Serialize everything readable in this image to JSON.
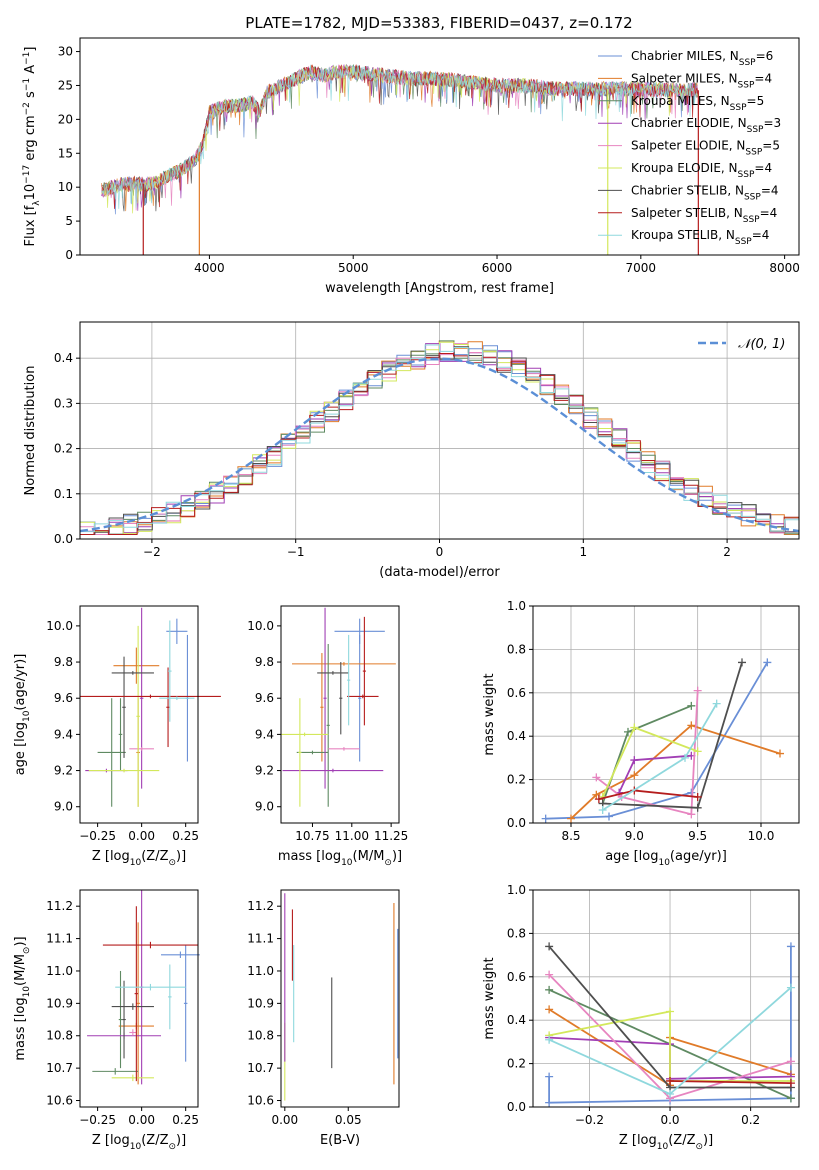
{
  "figure_title": "PLATE=1782, MJD=53383, FIBERID=0437, z=0.172",
  "colors": {
    "ChabrierMILES": "#6a8fd6",
    "SalpeterMILES": "#e07b29",
    "KroupaMILES": "#5f8a62",
    "ChabrierELODIE": "#a13fb4",
    "SalpeterELODIE": "#e785c0",
    "KroupaELODIE": "#d3e85c",
    "ChabrierSTELIB": "#4f4f4f",
    "SalpeterSTELIB": "#b51d1d",
    "KroupaSTELIB": "#8fd8dd"
  },
  "chart_data": [
    {
      "type": "line",
      "title": "PLATE=1782, MJD=53383, FIBERID=0437, z=0.172",
      "xlabel": "wavelength [Angstrom, rest frame]",
      "ylabel": "Flux [f_λ 10^-17 erg cm^-2 s^-1 A^-1]",
      "xlim": [
        3100,
        8100
      ],
      "ylim": [
        0,
        32
      ],
      "xticks": [
        "4000",
        "5000",
        "6000",
        "7000",
        "8000"
      ],
      "yticks": [
        "0",
        "5",
        "10",
        "15",
        "20",
        "25",
        "30"
      ],
      "legend_position": "right",
      "legend": [
        {
          "label": "Chabrier MILES, N",
          "sub": "SSP",
          "val": "=6",
          "color_key": "ChabrierMILES"
        },
        {
          "label": "Salpeter MILES, N",
          "sub": "SSP",
          "val": "=4",
          "color_key": "SalpeterMILES"
        },
        {
          "label": "Kroupa MILES, N",
          "sub": "SSP",
          "val": "=5",
          "color_key": "KroupaMILES"
        },
        {
          "label": "Chabrier ELODIE, N",
          "sub": "SSP",
          "val": "=3",
          "color_key": "ChabrierELODIE"
        },
        {
          "label": "Salpeter ELODIE, N",
          "sub": "SSP",
          "val": "=5",
          "color_key": "SalpeterELODIE"
        },
        {
          "label": "Kroupa ELODIE, N",
          "sub": "SSP",
          "val": "=4",
          "color_key": "KroupaELODIE"
        },
        {
          "label": "Chabrier STELIB, N",
          "sub": "SSP",
          "val": "=4",
          "color_key": "ChabrierSTELIB"
        },
        {
          "label": "Salpeter STELIB, N",
          "sub": "SSP",
          "val": "=4",
          "color_key": "SalpeterSTELIB"
        },
        {
          "label": "Kroupa STELIB, N",
          "sub": "SSP",
          "val": "=4",
          "color_key": "KroupaSTELIB"
        }
      ],
      "spectrum_envelope": {
        "x": [
          3250,
          3400,
          3600,
          3700,
          3800,
          3900,
          3950,
          4000,
          4100,
          4200,
          4300,
          4350,
          4400,
          4500,
          4600,
          4700,
          4800,
          4900,
          5000,
          5200,
          5400,
          5600,
          5800,
          6000,
          6200,
          6400,
          6600,
          6800,
          7000,
          7200,
          7400
        ],
        "y": [
          9.5,
          10.5,
          10.5,
          11.5,
          12.5,
          14,
          16,
          21,
          22,
          22,
          22.5,
          21,
          24,
          25,
          26,
          27,
          26.5,
          27,
          27,
          26.5,
          26,
          26,
          25.5,
          25,
          25,
          24.5,
          24.5,
          24.5,
          24.5,
          24.3,
          24.3
        ]
      },
      "drop_lines": [
        {
          "x": 3540,
          "color_key": "SalpeterSTELIB"
        },
        {
          "x": 3930,
          "color_key": "SalpeterMILES"
        },
        {
          "x": 6770,
          "color_key": "KroupaELODIE"
        },
        {
          "x": 7400,
          "color_key": "SalpeterSTELIB"
        }
      ]
    },
    {
      "type": "line",
      "xlabel": "(data-model)/error",
      "ylabel": "Normed distribution",
      "xlim": [
        -2.5,
        2.5
      ],
      "ylim": [
        0,
        0.48
      ],
      "xticks": [
        "−2",
        "−1",
        "0",
        "1",
        "2"
      ],
      "yticks": [
        "0.0",
        "0.1",
        "0.2",
        "0.3",
        "0.4"
      ],
      "legend": [
        {
          "label": "𝒩(0, 1)",
          "color": "#5b8fd6"
        }
      ],
      "legend_position": "top-right",
      "grid": true
    },
    {
      "type": "scatter",
      "xlabel": "Z [log10(Z/Z⊙)]",
      "ylabel": "age  [log10(age/yr)]",
      "xlim": [
        -0.35,
        0.32
      ],
      "ylim": [
        8.91,
        10.11
      ],
      "xticks": [
        "−0.25",
        "0.00",
        "0.25"
      ],
      "yticks": [
        "9.0",
        "9.2",
        "9.4",
        "9.6",
        "9.8",
        "10.0"
      ],
      "points": [
        {
          "x": 0.2,
          "y": 9.97,
          "xerr": 0.06,
          "yerr": 0.07,
          "color_key": "ChabrierMILES"
        },
        {
          "x": 0.26,
          "y": 9.6,
          "xerr": 0.01,
          "yerr": 0.35,
          "color_key": "ChabrierMILES"
        },
        {
          "x": -0.03,
          "y": 9.78,
          "xerr": 0.13,
          "yerr": 0.1,
          "color_key": "SalpeterMILES"
        },
        {
          "x": -0.02,
          "y": 9.3,
          "xerr": 0.01,
          "yerr": 0.3,
          "color_key": "SalpeterMILES"
        },
        {
          "x": -0.17,
          "y": 9.3,
          "xerr": 0.08,
          "yerr": 0.3,
          "color_key": "KroupaMILES"
        },
        {
          "x": -0.12,
          "y": 9.4,
          "xerr": 0.01,
          "yerr": 0.2,
          "color_key": "KroupaMILES"
        },
        {
          "x": 0.0,
          "y": 9.6,
          "xerr": 0.01,
          "yerr": 0.5,
          "color_key": "ChabrierELODIE"
        },
        {
          "x": -0.2,
          "y": 9.2,
          "xerr": 0.12,
          "yerr": 0.01,
          "color_key": "ChabrierELODIE"
        },
        {
          "x": 0.0,
          "y": 9.32,
          "xerr": 0.07,
          "yerr": 0.01,
          "color_key": "SalpeterELODIE"
        },
        {
          "x": -0.1,
          "y": 9.2,
          "xerr": 0.2,
          "yerr": 0.01,
          "color_key": "KroupaELODIE"
        },
        {
          "x": -0.02,
          "y": 9.5,
          "xerr": 0.01,
          "yerr": 0.5,
          "color_key": "KroupaELODIE"
        },
        {
          "x": -0.05,
          "y": 9.74,
          "xerr": 0.12,
          "yerr": 0.01,
          "color_key": "ChabrierSTELIB"
        },
        {
          "x": -0.1,
          "y": 9.55,
          "xerr": 0.01,
          "yerr": 0.28,
          "color_key": "ChabrierSTELIB"
        },
        {
          "x": 0.05,
          "y": 9.61,
          "xerr": 0.4,
          "yerr": 0.01,
          "color_key": "SalpeterSTELIB"
        },
        {
          "x": 0.15,
          "y": 9.55,
          "xerr": 0.01,
          "yerr": 0.22,
          "color_key": "SalpeterSTELIB"
        },
        {
          "x": 0.16,
          "y": 9.75,
          "xerr": 0.01,
          "yerr": 0.28,
          "color_key": "KroupaSTELIB"
        },
        {
          "x": 0.2,
          "y": 9.6,
          "xerr": 0.1,
          "yerr": 0.01,
          "color_key": "KroupaSTELIB"
        }
      ]
    },
    {
      "type": "scatter",
      "xlabel": "mass [log10(M/M⊙)]",
      "ylabel": "",
      "xlim": [
        10.55,
        11.3
      ],
      "ylim": [
        8.91,
        10.11
      ],
      "xticks": [
        "10.75",
        "11.00",
        "11.25"
      ],
      "yticks": [
        "9.0",
        "9.2",
        "9.4",
        "9.6",
        "9.8",
        "10.0"
      ],
      "points": [
        {
          "x": 11.05,
          "y": 9.97,
          "xerr": 0.16,
          "yerr": 0.07,
          "color_key": "ChabrierMILES"
        },
        {
          "x": 11.05,
          "y": 9.6,
          "xerr": 0.01,
          "yerr": 0.35,
          "color_key": "ChabrierMILES"
        },
        {
          "x": 10.95,
          "y": 9.79,
          "xerr": 0.33,
          "yerr": 0.01,
          "color_key": "SalpeterMILES"
        },
        {
          "x": 10.81,
          "y": 9.55,
          "xerr": 0.01,
          "yerr": 0.3,
          "color_key": "SalpeterMILES"
        },
        {
          "x": 10.75,
          "y": 9.3,
          "xerr": 0.1,
          "yerr": 0.01,
          "color_key": "KroupaMILES"
        },
        {
          "x": 10.85,
          "y": 9.45,
          "xerr": 0.01,
          "yerr": 0.45,
          "color_key": "KroupaMILES"
        },
        {
          "x": 10.88,
          "y": 9.2,
          "xerr": 0.32,
          "yerr": 0.01,
          "color_key": "ChabrierELODIE"
        },
        {
          "x": 10.83,
          "y": 9.6,
          "xerr": 0.01,
          "yerr": 0.5,
          "color_key": "ChabrierELODIE"
        },
        {
          "x": 10.95,
          "y": 9.32,
          "xerr": 0.1,
          "yerr": 0.01,
          "color_key": "SalpeterELODIE"
        },
        {
          "x": 10.7,
          "y": 9.4,
          "xerr": 0.15,
          "yerr": 0.01,
          "color_key": "KroupaELODIE"
        },
        {
          "x": 10.67,
          "y": 9.3,
          "xerr": 0.01,
          "yerr": 0.3,
          "color_key": "KroupaELODIE"
        },
        {
          "x": 10.88,
          "y": 9.74,
          "xerr": 0.1,
          "yerr": 0.01,
          "color_key": "ChabrierSTELIB"
        },
        {
          "x": 10.93,
          "y": 9.6,
          "xerr": 0.01,
          "yerr": 0.2,
          "color_key": "ChabrierSTELIB"
        },
        {
          "x": 11.07,
          "y": 9.61,
          "xerr": 0.1,
          "yerr": 0.01,
          "color_key": "SalpeterSTELIB"
        },
        {
          "x": 11.08,
          "y": 9.75,
          "xerr": 0.01,
          "yerr": 0.3,
          "color_key": "SalpeterSTELIB"
        },
        {
          "x": 10.98,
          "y": 9.7,
          "xerr": 0.01,
          "yerr": 0.25,
          "color_key": "KroupaSTELIB"
        }
      ]
    },
    {
      "type": "line",
      "xlabel": "age  [log10(age/yr)]",
      "ylabel": "mass weight",
      "xlim": [
        8.2,
        10.3
      ],
      "ylim": [
        0,
        1
      ],
      "xticks": [
        "8.5",
        "9.0",
        "9.5",
        "10.0"
      ],
      "yticks": [
        "0.0",
        "0.2",
        "0.4",
        "0.6",
        "0.8",
        "1.0"
      ],
      "grid": true,
      "series": [
        {
          "color_key": "ChabrierMILES",
          "x": [
            8.3,
            8.8,
            9.45,
            10.05
          ],
          "y": [
            0.02,
            0.03,
            0.14,
            0.74
          ]
        },
        {
          "color_key": "SalpeterMILES",
          "x": [
            8.5,
            8.7,
            9.0,
            9.45,
            10.15
          ],
          "y": [
            0.02,
            0.13,
            0.22,
            0.45,
            0.32
          ]
        },
        {
          "color_key": "KroupaMILES",
          "x": [
            8.75,
            8.95,
            9.45
          ],
          "y": [
            0.09,
            0.42,
            0.54
          ]
        },
        {
          "color_key": "ChabrierELODIE",
          "x": [
            8.88,
            9.0,
            9.45
          ],
          "y": [
            0.14,
            0.29,
            0.31
          ]
        },
        {
          "color_key": "SalpeterELODIE",
          "x": [
            8.7,
            8.9,
            9.45,
            9.5
          ],
          "y": [
            0.21,
            0.12,
            0.04,
            0.61
          ]
        },
        {
          "color_key": "KroupaELODIE",
          "x": [
            8.75,
            9.0,
            9.5
          ],
          "y": [
            0.12,
            0.44,
            0.33
          ]
        },
        {
          "color_key": "ChabrierSTELIB",
          "x": [
            8.75,
            9.5,
            9.85
          ],
          "y": [
            0.09,
            0.07,
            0.74
          ]
        },
        {
          "color_key": "SalpeterSTELIB",
          "x": [
            8.72,
            9.0,
            9.5
          ],
          "y": [
            0.11,
            0.15,
            0.12
          ]
        },
        {
          "color_key": "KroupaSTELIB",
          "x": [
            8.75,
            9.4,
            9.65
          ],
          "y": [
            0.06,
            0.3,
            0.55
          ]
        }
      ]
    },
    {
      "type": "scatter",
      "xlabel": "Z [log10(Z/Z⊙)]",
      "ylabel": "mass [log10(M/M⊙)]",
      "xlim": [
        -0.35,
        0.32
      ],
      "ylim": [
        10.58,
        11.25
      ],
      "xticks": [
        "−0.25",
        "0.00",
        "0.25"
      ],
      "yticks": [
        "10.6",
        "10.7",
        "10.8",
        "10.9",
        "11.0",
        "11.1",
        "11.2"
      ],
      "points": [
        {
          "x": 0.22,
          "y": 11.05,
          "xerr": 0.11,
          "yerr": 0.01,
          "color_key": "ChabrierMILES"
        },
        {
          "x": 0.25,
          "y": 10.9,
          "xerr": 0.01,
          "yerr": 0.18,
          "color_key": "ChabrierMILES"
        },
        {
          "x": -0.03,
          "y": 10.83,
          "xerr": 0.1,
          "yerr": 0.01,
          "color_key": "SalpeterMILES"
        },
        {
          "x": -0.02,
          "y": 10.9,
          "xerr": 0.01,
          "yerr": 0.25,
          "color_key": "SalpeterMILES"
        },
        {
          "x": -0.15,
          "y": 10.69,
          "xerr": 0.13,
          "yerr": 0.01,
          "color_key": "KroupaMILES"
        },
        {
          "x": -0.12,
          "y": 10.85,
          "xerr": 0.01,
          "yerr": 0.15,
          "color_key": "KroupaMILES"
        },
        {
          "x": -0.1,
          "y": 10.8,
          "xerr": 0.21,
          "yerr": 0.01,
          "color_key": "ChabrierELODIE"
        },
        {
          "x": 0.0,
          "y": 10.95,
          "xerr": 0.01,
          "yerr": 0.3,
          "color_key": "ChabrierELODIE"
        },
        {
          "x": -0.05,
          "y": 10.81,
          "xerr": 0.02,
          "yerr": 0.01,
          "color_key": "SalpeterELODIE"
        },
        {
          "x": -0.05,
          "y": 10.67,
          "xerr": 0.12,
          "yerr": 0.01,
          "color_key": "KroupaELODIE"
        },
        {
          "x": -0.05,
          "y": 10.89,
          "xerr": 0.12,
          "yerr": 0.01,
          "color_key": "ChabrierSTELIB"
        },
        {
          "x": -0.1,
          "y": 10.85,
          "xerr": 0.01,
          "yerr": 0.12,
          "color_key": "ChabrierSTELIB"
        },
        {
          "x": 0.05,
          "y": 11.08,
          "xerr": 0.27,
          "yerr": 0.01,
          "color_key": "SalpeterSTELIB"
        },
        {
          "x": -0.03,
          "y": 10.93,
          "xerr": 0.01,
          "yerr": 0.27,
          "color_key": "SalpeterSTELIB"
        },
        {
          "x": 0.05,
          "y": 10.95,
          "xerr": 0.2,
          "yerr": 0.01,
          "color_key": "KroupaSTELIB"
        },
        {
          "x": 0.16,
          "y": 10.92,
          "xerr": 0.01,
          "yerr": 0.1,
          "color_key": "KroupaSTELIB"
        }
      ]
    },
    {
      "type": "scatter",
      "xlabel": "E(B-V)",
      "ylabel": "",
      "xlim": [
        -0.003,
        0.09
      ],
      "ylim": [
        10.58,
        11.25
      ],
      "xticks": [
        "0.00",
        "0.05"
      ],
      "yticks": [
        "10.6",
        "10.7",
        "10.8",
        "10.9",
        "11.0",
        "11.1",
        "11.2"
      ],
      "points": [
        {
          "x": 0.089,
          "y": 10.93,
          "yerr": 0.2,
          "color_key": "ChabrierMILES"
        },
        {
          "x": 0.086,
          "y": 10.93,
          "yerr": 0.28,
          "color_key": "SalpeterMILES"
        },
        {
          "x": 0.0,
          "y": 10.72,
          "yerr": 0.12,
          "color_key": "KroupaELODIE"
        },
        {
          "x": 0.0,
          "y": 10.98,
          "yerr": 0.26,
          "color_key": "ChabrierELODIE"
        },
        {
          "x": 0.006,
          "y": 11.08,
          "yerr": 0.11,
          "color_key": "SalpeterSTELIB"
        },
        {
          "x": 0.007,
          "y": 10.93,
          "yerr": 0.15,
          "color_key": "KroupaSTELIB"
        },
        {
          "x": 0.037,
          "y": 10.84,
          "yerr": 0.14,
          "color_key": "ChabrierSTELIB"
        }
      ]
    },
    {
      "type": "line",
      "xlabel": "Z [log10(Z/Z⊙)]",
      "ylabel": "mass weight",
      "xlim": [
        -0.34,
        0.32
      ],
      "ylim": [
        0,
        1
      ],
      "xticks": [
        "−0.2",
        "0.0",
        "0.2"
      ],
      "yticks": [
        "0.0",
        "0.2",
        "0.4",
        "0.6",
        "0.8",
        "1.0"
      ],
      "grid": true,
      "series": [
        {
          "color_key": "ChabrierMILES",
          "x": [
            -0.3,
            -0.3,
            0.0,
            0.3,
            0.3
          ],
          "y": [
            0.14,
            0.02,
            0.03,
            0.04,
            0.74
          ]
        },
        {
          "color_key": "SalpeterMILES",
          "x": [
            -0.3,
            0.0,
            0.0,
            0.3
          ],
          "y": [
            0.45,
            0.1,
            0.32,
            0.15
          ]
        },
        {
          "color_key": "KroupaMILES",
          "x": [
            -0.3,
            0.3
          ],
          "y": [
            0.54,
            0.04
          ]
        },
        {
          "color_key": "ChabrierELODIE",
          "x": [
            -0.3,
            0.0,
            0.0,
            0.3
          ],
          "y": [
            0.32,
            0.29,
            0.13,
            0.14
          ]
        },
        {
          "color_key": "SalpeterELODIE",
          "x": [
            -0.3,
            0.0,
            0.3
          ],
          "y": [
            0.61,
            0.04,
            0.21
          ]
        },
        {
          "color_key": "KroupaELODIE",
          "x": [
            -0.3,
            0.0,
            0.0,
            0.3
          ],
          "y": [
            0.33,
            0.44,
            0.12,
            0.12
          ]
        },
        {
          "color_key": "ChabrierSTELIB",
          "x": [
            -0.3,
            0.0,
            0.3
          ],
          "y": [
            0.74,
            0.09,
            0.09
          ]
        },
        {
          "color_key": "SalpeterSTELIB",
          "x": [
            0.0,
            0.3
          ],
          "y": [
            0.12,
            0.11
          ]
        },
        {
          "color_key": "KroupaSTELIB",
          "x": [
            -0.3,
            0.0,
            0.3
          ],
          "y": [
            0.31,
            0.06,
            0.55
          ]
        }
      ]
    }
  ]
}
